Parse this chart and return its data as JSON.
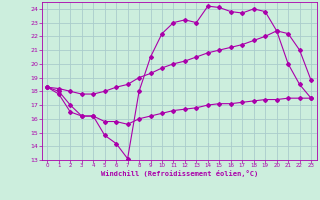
{
  "xlabel": "Windchill (Refroidissement éolien,°C)",
  "ylabel": "",
  "bg_color": "#cceedd",
  "grid_color": "#aacccc",
  "line_color": "#aa00aa",
  "xlim": [
    -0.5,
    23.5
  ],
  "ylim": [
    13,
    24.5
  ],
  "xticks": [
    0,
    1,
    2,
    3,
    4,
    5,
    6,
    7,
    8,
    9,
    10,
    11,
    12,
    13,
    14,
    15,
    16,
    17,
    18,
    19,
    20,
    21,
    22,
    23
  ],
  "yticks": [
    13,
    14,
    15,
    16,
    17,
    18,
    19,
    20,
    21,
    22,
    23,
    24
  ],
  "line1_x": [
    0,
    1,
    2,
    3,
    4,
    5,
    6,
    7,
    8,
    9,
    10,
    11,
    12,
    13,
    14,
    15,
    16,
    17,
    18,
    19,
    20,
    21,
    22,
    23
  ],
  "line1_y": [
    18.3,
    18.0,
    17.0,
    16.2,
    16.2,
    14.8,
    14.2,
    13.1,
    18.0,
    20.5,
    22.2,
    23.0,
    23.2,
    23.0,
    24.2,
    24.1,
    23.8,
    23.7,
    24.0,
    23.8,
    22.4,
    20.0,
    18.5,
    17.5
  ],
  "line2_x": [
    0,
    1,
    2,
    3,
    4,
    5,
    6,
    7,
    8,
    9,
    10,
    11,
    12,
    13,
    14,
    15,
    16,
    17,
    18,
    19,
    20,
    21,
    22,
    23
  ],
  "line2_y": [
    18.3,
    17.8,
    16.5,
    16.2,
    16.2,
    15.8,
    15.8,
    15.6,
    16.0,
    16.2,
    16.4,
    16.6,
    16.7,
    16.8,
    17.0,
    17.1,
    17.1,
    17.2,
    17.3,
    17.4,
    17.4,
    17.5,
    17.5,
    17.5
  ],
  "line3_x": [
    0,
    1,
    2,
    3,
    4,
    5,
    6,
    7,
    8,
    9,
    10,
    11,
    12,
    13,
    14,
    15,
    16,
    17,
    18,
    19,
    20,
    21,
    22,
    23
  ],
  "line3_y": [
    18.3,
    18.2,
    18.0,
    17.8,
    17.8,
    18.0,
    18.3,
    18.5,
    19.0,
    19.3,
    19.7,
    20.0,
    20.2,
    20.5,
    20.8,
    21.0,
    21.2,
    21.4,
    21.7,
    22.0,
    22.4,
    22.2,
    21.0,
    18.8
  ]
}
